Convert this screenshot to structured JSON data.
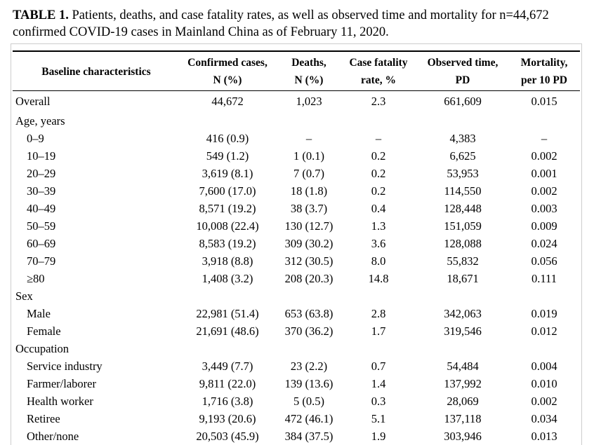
{
  "caption": {
    "label": "TABLE 1.",
    "text": "Patients, deaths, and case fatality rates, as well as observed time and mortality for n=44,672 confirmed COVID-19 cases in Mainland China as of February 11, 2020."
  },
  "table": {
    "header": {
      "characteristic": "Baseline characteristics",
      "columns": [
        {
          "line1": "Confirmed cases,",
          "line2": "N (%)"
        },
        {
          "line1": "Deaths,",
          "line2": "N (%)"
        },
        {
          "line1": "Case fatality",
          "line2": "rate, %"
        },
        {
          "line1": "Observed time,",
          "line2": "PD"
        },
        {
          "line1": "Mortality,",
          "line2": "per 10 PD"
        }
      ]
    },
    "overall": {
      "label": "Overall",
      "values": [
        "44,672",
        "1,023",
        "2.3",
        "661,609",
        "0.015"
      ]
    },
    "groups": [
      {
        "name": "Age, years",
        "rows": [
          {
            "label": "0–9",
            "values": [
              "416 (0.9)",
              "–",
              "–",
              "4,383",
              "–"
            ]
          },
          {
            "label": "10–19",
            "values": [
              "549 (1.2)",
              "1 (0.1)",
              "0.2",
              "6,625",
              "0.002"
            ]
          },
          {
            "label": "20–29",
            "values": [
              "3,619 (8.1)",
              "7 (0.7)",
              "0.2",
              "53,953",
              "0.001"
            ]
          },
          {
            "label": "30–39",
            "values": [
              "7,600 (17.0)",
              "18 (1.8)",
              "0.2",
              "114,550",
              "0.002"
            ]
          },
          {
            "label": "40–49",
            "values": [
              "8,571 (19.2)",
              "38 (3.7)",
              "0.4",
              "128,448",
              "0.003"
            ]
          },
          {
            "label": "50–59",
            "values": [
              "10,008 (22.4)",
              "130 (12.7)",
              "1.3",
              "151,059",
              "0.009"
            ]
          },
          {
            "label": "60–69",
            "values": [
              "8,583 (19.2)",
              "309 (30.2)",
              "3.6",
              "128,088",
              "0.024"
            ]
          },
          {
            "label": "70–79",
            "values": [
              "3,918 (8.8)",
              "312 (30.5)",
              "8.0",
              "55,832",
              "0.056"
            ]
          },
          {
            "label": "≥80",
            "values": [
              "1,408 (3.2)",
              "208 (20.3)",
              "14.8",
              "18,671",
              "0.111"
            ]
          }
        ]
      },
      {
        "name": "Sex",
        "rows": [
          {
            "label": "Male",
            "values": [
              "22,981 (51.4)",
              "653 (63.8)",
              "2.8",
              "342,063",
              "0.019"
            ]
          },
          {
            "label": "Female",
            "values": [
              "21,691 (48.6)",
              "370 (36.2)",
              "1.7",
              "319,546",
              "0.012"
            ]
          }
        ]
      },
      {
        "name": "Occupation",
        "rows": [
          {
            "label": "Service industry",
            "values": [
              "3,449 (7.7)",
              "23 (2.2)",
              "0.7",
              "54,484",
              "0.004"
            ]
          },
          {
            "label": "Farmer/laborer",
            "values": [
              "9,811 (22.0)",
              "139 (13.6)",
              "1.4",
              "137,992",
              "0.010"
            ]
          },
          {
            "label": "Health worker",
            "values": [
              "1,716 (3.8)",
              "5 (0.5)",
              "0.3",
              "28,069",
              "0.002"
            ]
          },
          {
            "label": "Retiree",
            "values": [
              "9,193 (20.6)",
              "472 (46.1)",
              "5.1",
              "137,118",
              "0.034"
            ]
          },
          {
            "label": "Other/none",
            "values": [
              "20,503 (45.9)",
              "384 (37.5)",
              "1.9",
              "303,946",
              "0.013"
            ]
          }
        ]
      }
    ]
  }
}
